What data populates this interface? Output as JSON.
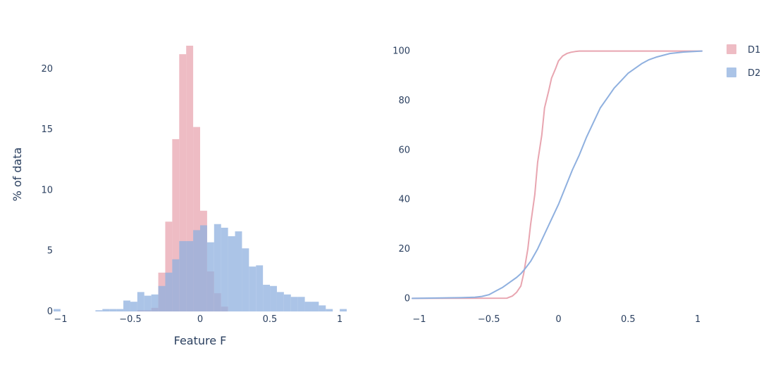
{
  "colors": {
    "D1": "#e8a5b0",
    "D2": "#8fb0df",
    "text": "#2a3f5f"
  },
  "legend": [
    {
      "name": "D1",
      "color": "#e8a5b0"
    },
    {
      "name": "D2",
      "color": "#8fb0df"
    }
  ],
  "chart_data": [
    {
      "type": "bar",
      "subtype": "overlaid-histogram",
      "title": "",
      "xlabel": "Feature F",
      "ylabel": "% of data",
      "xlim": [
        -1.05,
        1.05
      ],
      "ylim": [
        0,
        23
      ],
      "bin_width": 0.05,
      "x_ticks": [
        -1,
        -0.5,
        0,
        0.5,
        1
      ],
      "x_tick_labels": [
        "−1",
        "−0.5",
        "0",
        "0.5",
        "1"
      ],
      "y_ticks": [
        0,
        5,
        10,
        15,
        20
      ],
      "y_tick_labels": [
        "0",
        "5",
        "10",
        "15",
        "20"
      ],
      "grid": false,
      "series": [
        {
          "name": "D1",
          "bins": [
            {
              "x0": -0.45,
              "y": 0.1
            },
            {
              "x0": -0.4,
              "y": 0.1
            },
            {
              "x0": -0.35,
              "y": 0.3
            },
            {
              "x0": -0.3,
              "y": 3.2
            },
            {
              "x0": -0.25,
              "y": 7.4
            },
            {
              "x0": -0.2,
              "y": 14.2
            },
            {
              "x0": -0.15,
              "y": 21.2
            },
            {
              "x0": -0.1,
              "y": 21.9
            },
            {
              "x0": -0.05,
              "y": 15.2
            },
            {
              "x0": 0.0,
              "y": 8.3
            },
            {
              "x0": 0.05,
              "y": 3.3
            },
            {
              "x0": 0.1,
              "y": 1.5
            },
            {
              "x0": 0.15,
              "y": 0.4
            }
          ]
        },
        {
          "name": "D2",
          "bins": [
            {
              "x0": -1.05,
              "y": 0.2
            },
            {
              "x0": -0.75,
              "y": 0.1
            },
            {
              "x0": -0.7,
              "y": 0.2
            },
            {
              "x0": -0.65,
              "y": 0.2
            },
            {
              "x0": -0.6,
              "y": 0.2
            },
            {
              "x0": -0.55,
              "y": 0.9
            },
            {
              "x0": -0.5,
              "y": 0.8
            },
            {
              "x0": -0.45,
              "y": 1.6
            },
            {
              "x0": -0.4,
              "y": 1.3
            },
            {
              "x0": -0.35,
              "y": 1.4
            },
            {
              "x0": -0.3,
              "y": 2.1
            },
            {
              "x0": -0.25,
              "y": 3.2
            },
            {
              "x0": -0.2,
              "y": 4.3
            },
            {
              "x0": -0.15,
              "y": 5.8
            },
            {
              "x0": -0.1,
              "y": 5.8
            },
            {
              "x0": -0.05,
              "y": 6.7
            },
            {
              "x0": 0.0,
              "y": 7.1
            },
            {
              "x0": 0.05,
              "y": 5.7
            },
            {
              "x0": 0.1,
              "y": 7.2
            },
            {
              "x0": 0.15,
              "y": 6.9
            },
            {
              "x0": 0.2,
              "y": 6.2
            },
            {
              "x0": 0.25,
              "y": 6.6
            },
            {
              "x0": 0.3,
              "y": 5.2
            },
            {
              "x0": 0.35,
              "y": 3.7
            },
            {
              "x0": 0.4,
              "y": 3.8
            },
            {
              "x0": 0.45,
              "y": 2.2
            },
            {
              "x0": 0.5,
              "y": 2.1
            },
            {
              "x0": 0.55,
              "y": 1.6
            },
            {
              "x0": 0.6,
              "y": 1.4
            },
            {
              "x0": 0.65,
              "y": 1.2
            },
            {
              "x0": 0.7,
              "y": 1.2
            },
            {
              "x0": 0.75,
              "y": 0.8
            },
            {
              "x0": 0.8,
              "y": 0.8
            },
            {
              "x0": 0.85,
              "y": 0.5
            },
            {
              "x0": 0.9,
              "y": 0.2
            },
            {
              "x0": 1.0,
              "y": 0.2
            }
          ]
        }
      ]
    },
    {
      "type": "line",
      "subtype": "cumulative-distribution",
      "title": "",
      "xlabel": "",
      "ylabel": "",
      "xlim": [
        -1.05,
        1.05
      ],
      "ylim": [
        -3,
        103
      ],
      "x_ticks": [
        -1,
        -0.5,
        0,
        0.5,
        1
      ],
      "x_tick_labels": [
        "−1",
        "−0.5",
        "0",
        "0.5",
        "1"
      ],
      "y_ticks": [
        0,
        20,
        40,
        60,
        80,
        100
      ],
      "y_tick_labels": [
        "0",
        "20",
        "40",
        "60",
        "80",
        "100"
      ],
      "grid": false,
      "legend_position": "top-right",
      "series": [
        {
          "name": "D1",
          "x": [
            -1.05,
            -0.37,
            -0.33,
            -0.3,
            -0.27,
            -0.25,
            -0.22,
            -0.2,
            -0.17,
            -0.15,
            -0.12,
            -0.1,
            -0.07,
            -0.05,
            -0.02,
            0.0,
            0.03,
            0.06,
            0.09,
            0.12,
            0.15,
            0.2,
            0.4,
            1.03
          ],
          "y": [
            0,
            0.1,
            1,
            2.5,
            5,
            10,
            20,
            30,
            42,
            55,
            66,
            77,
            84,
            89,
            93,
            96,
            98,
            99,
            99.5,
            99.8,
            100,
            100,
            100,
            100
          ]
        },
        {
          "name": "D2",
          "x": [
            -1.05,
            -0.7,
            -0.6,
            -0.55,
            -0.5,
            -0.45,
            -0.4,
            -0.35,
            -0.3,
            -0.27,
            -0.24,
            -0.2,
            -0.15,
            -0.1,
            -0.05,
            0.0,
            0.05,
            0.1,
            0.15,
            0.2,
            0.25,
            0.3,
            0.35,
            0.4,
            0.45,
            0.5,
            0.55,
            0.6,
            0.65,
            0.7,
            0.8,
            0.9,
            1.03
          ],
          "y": [
            0,
            0.3,
            0.5,
            0.8,
            1.5,
            3,
            4.5,
            6.5,
            8.5,
            10,
            12,
            15,
            20,
            26,
            32,
            38,
            45,
            52,
            58,
            65,
            71,
            77,
            81,
            85,
            88,
            91,
            93,
            95,
            96.5,
            97.5,
            99,
            99.6,
            100
          ]
        }
      ]
    }
  ]
}
